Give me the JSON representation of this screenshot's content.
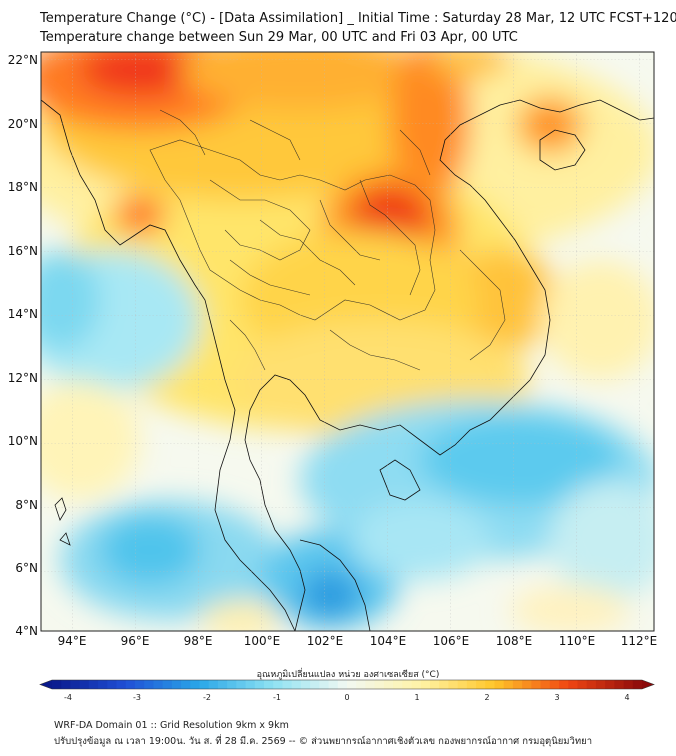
{
  "title_line1": "Temperature Change (°C) - [Data Assimilation] _ Initial Time : Saturday 28 Mar, 12 UTC FCST+120",
  "title_line2": "Temperature change between Sun 29 Mar, 00 UTC and Fri 03 Apr, 00 UTC",
  "lat_labels": [
    "22°N",
    "20°N",
    "18°N",
    "16°N",
    "14°N",
    "12°N",
    "10°N",
    "8°N",
    "6°N",
    "4°N"
  ],
  "lon_labels": [
    "94°E",
    "96°E",
    "98°E",
    "100°E",
    "102°E",
    "104°E",
    "106°E",
    "108°E",
    "110°E",
    "112°E"
  ],
  "colorbar": {
    "title": "อุณหภูมิเปลี่ยนแปลง หน่วย องศาเซลเซียส (°C)",
    "ticks": [
      "-4",
      "-3",
      "-2",
      "-1",
      "0",
      "1",
      "2",
      "3",
      "4"
    ],
    "colors": {
      "neg4": "#0a1a8c",
      "neg3": "#1f4fd6",
      "neg2": "#2aa7e8",
      "neg1": "#8fe2f2",
      "zero": "#f2f8f2",
      "pos1": "#fff3a6",
      "pos2": "#ffc629",
      "pos3": "#f04612",
      "pos4": "#8c0a0a"
    }
  },
  "footer_line1": "WRF-DA Domain 01 :: Grid Resolution 9km x 9km",
  "footer_line2": "ปรับปรุงข้อมูล ณ เวลา 19:00น. วัน ส. ที่ 28 มี.ค. 2569 -- © ส่วนพยากรณ์อากาศเชิงตัวเลข กองพยากรณ์อากาศ กรมอุตุนิยมวิทยา"
}
